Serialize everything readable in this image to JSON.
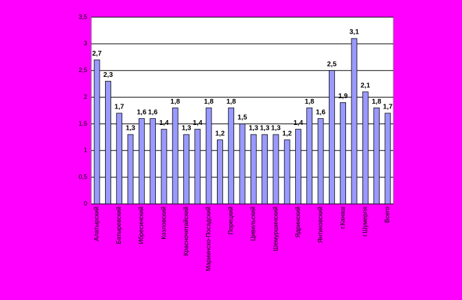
{
  "chart_data": {
    "type": "bar",
    "categories": [
      "Алатырский",
      null,
      "Батыревский",
      null,
      "Ибресинский",
      null,
      "Козловский",
      null,
      "Красночетайский",
      null,
      "Мариинско-Посадский",
      null,
      "Порецкий",
      null,
      "Цивильский",
      null,
      "Шемуршинский",
      null,
      "Ядринский",
      null,
      "Янтиковский",
      null,
      "г.Канаш",
      null,
      "г.Шумерля",
      null,
      "Всего"
    ],
    "values": [
      2.7,
      2.3,
      1.7,
      1.3,
      1.6,
      1.6,
      1.4,
      1.8,
      1.3,
      1.4,
      1.8,
      1.2,
      1.8,
      1.5,
      1.3,
      1.3,
      1.3,
      1.2,
      1.4,
      1.8,
      1.6,
      2.5,
      1.9,
      3.1,
      2.1,
      1.8,
      1.7
    ],
    "value_labels": [
      "2,7",
      "2,3",
      "1,7",
      "1,3",
      "1,6",
      "1,6",
      "1,4",
      "1,8",
      "1,3",
      "1,4",
      "1,8",
      "1,2",
      "1,8",
      "1,5",
      "1,3",
      "1,3",
      "1,3",
      "1,2",
      "1,4",
      "1,8",
      "1,6",
      "2,5",
      "1,9",
      "3,1",
      "2,1",
      "1,8",
      "1,7"
    ],
    "color": "#9999ff",
    "ylim": [
      0,
      3.5
    ],
    "yticks": [
      0,
      {
        "value": 0.5,
        "label": "0,5"
      },
      1,
      {
        "value": 1.5,
        "label": "1,5"
      },
      2,
      {
        "value": 2.5,
        "label": "2,5"
      },
      3,
      {
        "value": 3.5,
        "label": "3,5"
      }
    ],
    "grid": true
  }
}
